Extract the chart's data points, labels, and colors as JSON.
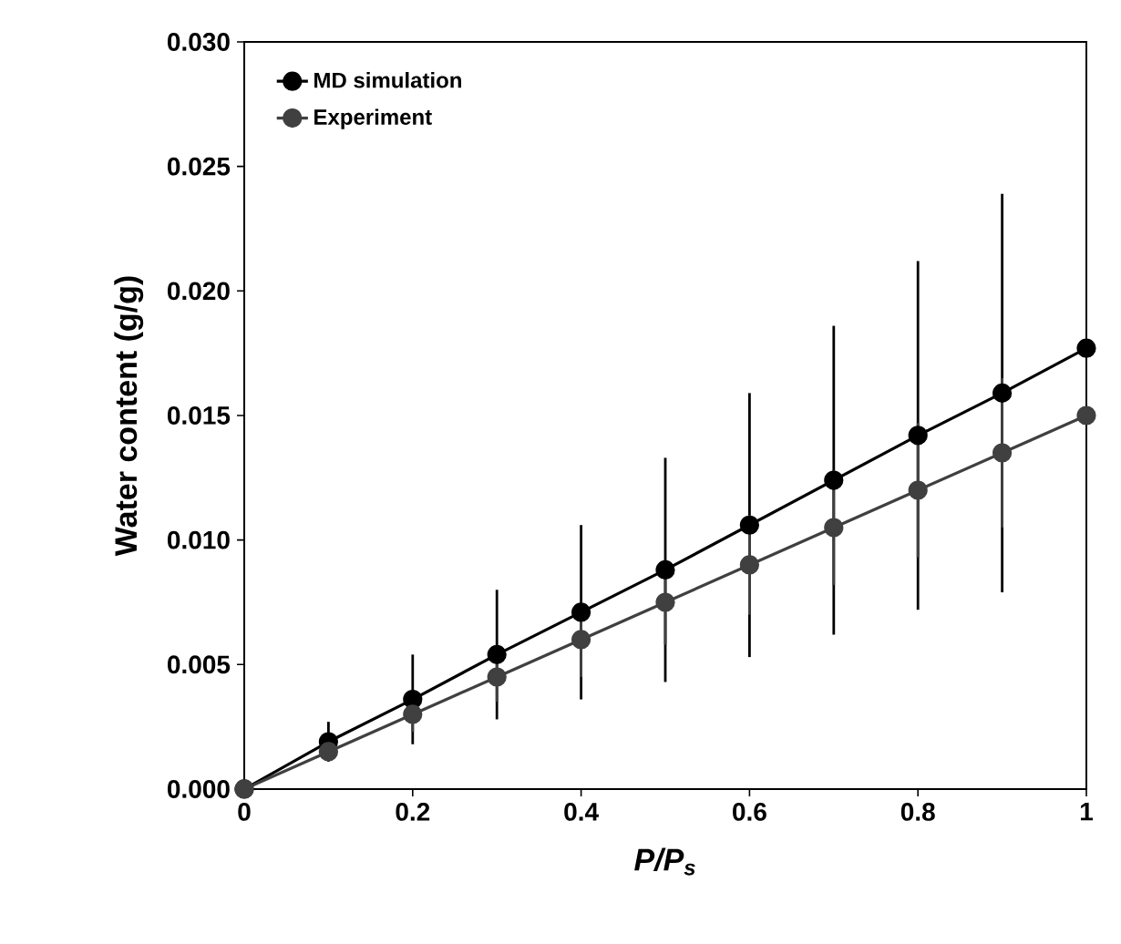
{
  "chart_data": {
    "type": "line",
    "xlabel": "P/P$_{s}$",
    "ylabel": "Water content (g/g)",
    "x": [
      0,
      0.1,
      0.2,
      0.3,
      0.4,
      0.5,
      0.6,
      0.7,
      0.8,
      0.9,
      1.0
    ],
    "series": [
      {
        "name": "MD simulation",
        "color": "#000000",
        "values": [
          0,
          0.0019,
          0.0036,
          0.0054,
          0.0071,
          0.0088,
          0.0106,
          0.0124,
          0.0142,
          0.0159,
          0.0177
        ],
        "errors": [
          null,
          0.0008,
          0.0018,
          0.0026,
          0.0035,
          0.0045,
          0.0053,
          0.0062,
          0.007,
          0.008,
          null
        ]
      },
      {
        "name": "Experiment",
        "color": "#404040",
        "values": [
          0,
          0.0015,
          0.003,
          0.0045,
          0.006,
          0.0075,
          0.009,
          0.0105,
          0.012,
          0.0135,
          0.015
        ],
        "errors": [
          null,
          0.0003,
          0.0007,
          0.001,
          0.0015,
          0.0017,
          0.002,
          0.0023,
          0.0027,
          0.003,
          null
        ]
      }
    ],
    "xlim": [
      0,
      1
    ],
    "ylim": [
      0,
      0.03
    ],
    "xticks": [
      0,
      0.2,
      0.4,
      0.6,
      0.8,
      1
    ],
    "yticks": [
      {
        "value": 0,
        "label": "0.000"
      },
      {
        "value": 0.005,
        "label": "0.005"
      },
      {
        "value": 0.01,
        "label": "0.010"
      },
      {
        "value": 0.015,
        "label": "0.015"
      },
      {
        "value": 0.02,
        "label": "0.020"
      },
      {
        "value": 0.025,
        "label": "0.025"
      },
      {
        "value": 0.03,
        "label": "0.030"
      }
    ],
    "legend": "top left",
    "marker": "circle",
    "line_style": "solid",
    "grid": false
  }
}
